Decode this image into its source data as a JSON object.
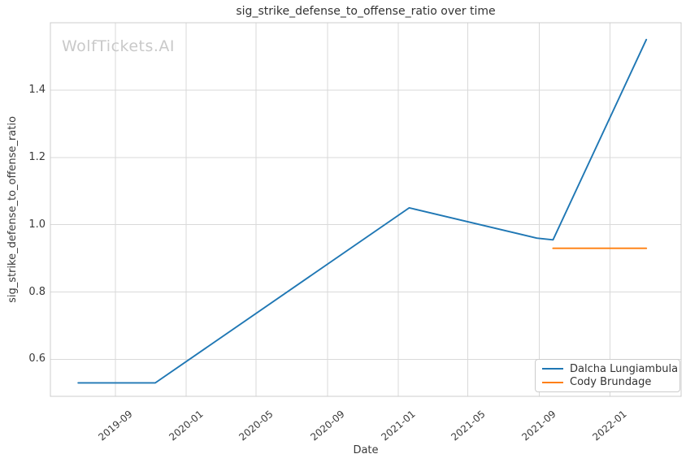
{
  "branding": {
    "watermark": "WolfTickets.AI"
  },
  "chart_data": {
    "type": "line",
    "title": "sig_strike_defense_to_offense_ratio over time",
    "xlabel": "Date",
    "ylabel": "sig_strike_defense_to_offense_ratio",
    "grid": true,
    "legend_position": "lower right",
    "xlim": [
      "2019-05-12",
      "2022-05-04"
    ],
    "ylim": [
      0.49,
      1.6
    ],
    "xticks": [
      {
        "date": "2019-09-01",
        "label": "2019-09"
      },
      {
        "date": "2020-01-01",
        "label": "2020-01"
      },
      {
        "date": "2020-05-01",
        "label": "2020-05"
      },
      {
        "date": "2020-09-01",
        "label": "2020-09"
      },
      {
        "date": "2021-01-01",
        "label": "2021-01"
      },
      {
        "date": "2021-05-01",
        "label": "2021-05"
      },
      {
        "date": "2021-09-01",
        "label": "2021-09"
      },
      {
        "date": "2022-01-01",
        "label": "2022-01"
      }
    ],
    "yticks": [
      {
        "value": 0.6,
        "label": "0.6"
      },
      {
        "value": 0.8,
        "label": "0.8"
      },
      {
        "value": 1.0,
        "label": "1.0"
      },
      {
        "value": 1.2,
        "label": "1.2"
      },
      {
        "value": 1.4,
        "label": "1.4"
      }
    ],
    "series": [
      {
        "name": "Dalcha Lungiambula",
        "color": "#1f77b4",
        "points": [
          {
            "date": "2019-06-29",
            "value": 0.53
          },
          {
            "date": "2019-11-09",
            "value": 0.53
          },
          {
            "date": "2021-01-20",
            "value": 1.05
          },
          {
            "date": "2021-08-28",
            "value": 0.96
          },
          {
            "date": "2021-09-25",
            "value": 0.955
          },
          {
            "date": "2022-03-05",
            "value": 1.55
          }
        ]
      },
      {
        "name": "Cody Brundage",
        "color": "#ff7f0e",
        "points": [
          {
            "date": "2021-09-25",
            "value": 0.93
          },
          {
            "date": "2022-03-05",
            "value": 0.93
          }
        ]
      }
    ],
    "colors": {
      "grid": "#d9d9d9",
      "spine": "#cccccc",
      "text": "#3a3a3a",
      "watermark": "#c9c9c9"
    }
  }
}
